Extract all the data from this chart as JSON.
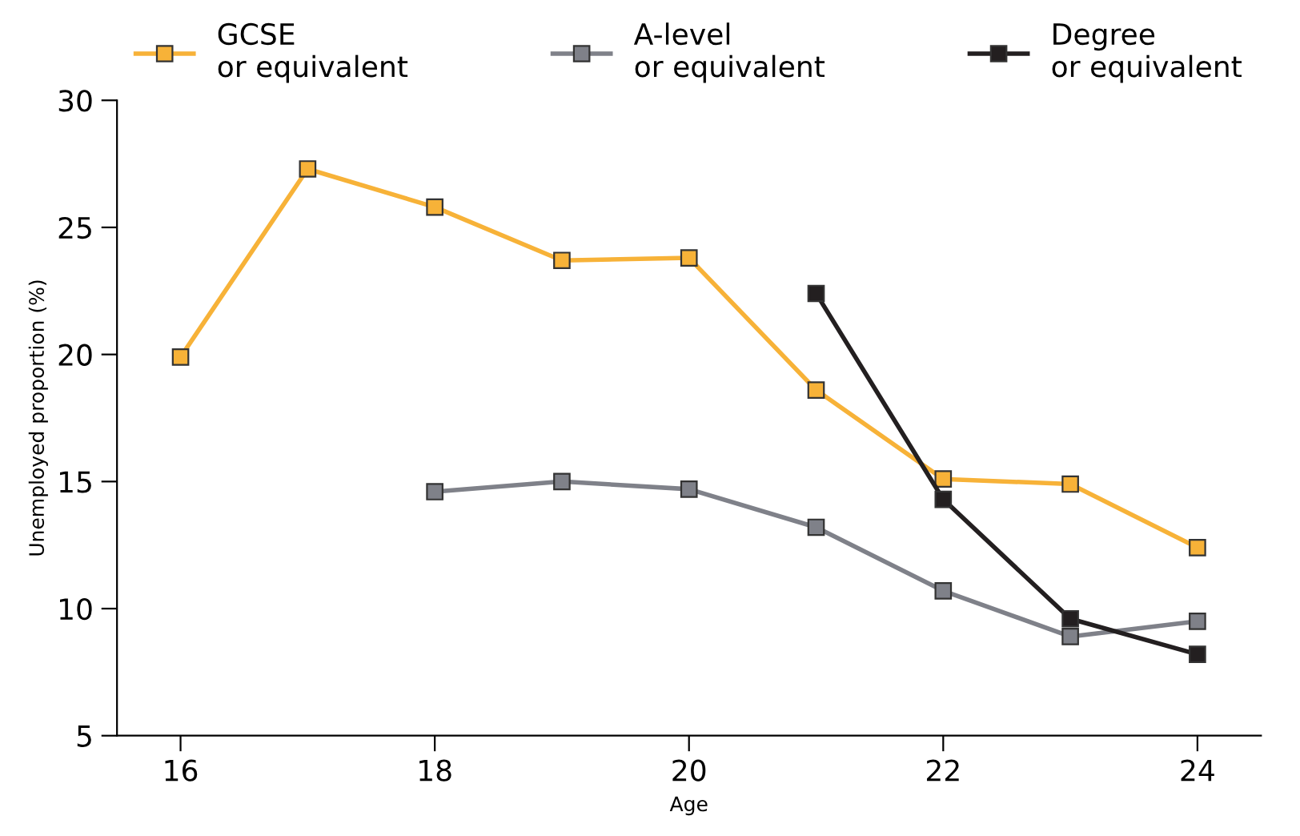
{
  "chart_data": {
    "type": "line",
    "xlabel": "Age",
    "ylabel": "Unemployed proportion (%)",
    "xlim": [
      15.5,
      24.5
    ],
    "xticks": [
      16,
      18,
      20,
      22,
      24
    ],
    "ylim": [
      5,
      30
    ],
    "yticks": [
      5,
      10,
      15,
      20,
      25,
      30
    ],
    "grid": false,
    "legend": "top",
    "marker": "square",
    "line_style": "solid",
    "series": [
      {
        "name": "GCSE\nor equivalent",
        "color": "#f7b238",
        "x": [
          16,
          17,
          18,
          19,
          20,
          21,
          22,
          23,
          24
        ],
        "values": [
          19.9,
          27.3,
          25.8,
          23.7,
          23.8,
          18.6,
          15.1,
          14.9,
          12.4
        ]
      },
      {
        "name": "A-level\nor equivalent",
        "color": "#7f8189",
        "x": [
          18,
          19,
          20,
          21,
          22,
          23,
          24
        ],
        "values": [
          14.6,
          15.0,
          14.7,
          13.2,
          10.7,
          8.9,
          9.5
        ]
      },
      {
        "name": "Degree\nor equivalent",
        "color": "#231f20",
        "x": [
          21,
          22,
          23,
          24
        ],
        "values": [
          22.4,
          14.3,
          9.6,
          8.2
        ]
      }
    ]
  }
}
